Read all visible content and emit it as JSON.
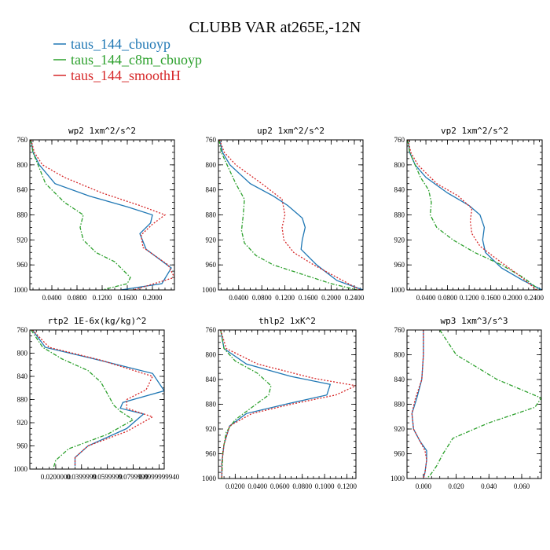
{
  "title": "CLUBB VAR at265E,-12N",
  "colors": {
    "taus_144_cbuoyp": "#1f77b4",
    "taus_144_c8m_cbuoyp": "#2ca02c",
    "taus_144_smoothH": "#d62728"
  },
  "legend": [
    {
      "label": "taus_144_cbuoyp",
      "color": "#1f77b4",
      "dash": "solid"
    },
    {
      "label": "taus_144_c8m_cbuoyp",
      "color": "#2ca02c",
      "dash": "dashdot"
    },
    {
      "label": "taus_144_smoothH",
      "color": "#d62728",
      "dash": "dotted"
    }
  ],
  "chart_data": [
    {
      "type": "line",
      "title": "wp2  1xm^2/s^2",
      "ylim": [
        760,
        1000
      ],
      "yticks": [
        760,
        800,
        840,
        880,
        920,
        960,
        1000
      ],
      "ytick_labels": [
        "760",
        "800",
        "840",
        "880",
        "920",
        "960",
        "1000"
      ],
      "xlim": [
        0.005,
        0.235
      ],
      "xticks": [
        0.04,
        0.08,
        0.12,
        0.16,
        0.2
      ],
      "xtick_labels": [
        "0.0400",
        "0.0800",
        "0.1200",
        "0.1600",
        "0.2000"
      ],
      "series": [
        {
          "name": "taus_144_cbuoyp",
          "x": [
            0.007,
            0.01,
            0.02,
            0.045,
            0.1,
            0.16,
            0.2,
            0.197,
            0.18,
            0.19,
            0.23,
            0.215,
            0.15
          ],
          "y": [
            760,
            780,
            800,
            830,
            850,
            867,
            880,
            893,
            910,
            935,
            965,
            990,
            1000
          ]
        },
        {
          "name": "taus_144_c8m_cbuoyp",
          "x": [
            0.006,
            0.01,
            0.018,
            0.03,
            0.06,
            0.09,
            0.085,
            0.09,
            0.11,
            0.14,
            0.165,
            0.16,
            0.12
          ],
          "y": [
            760,
            780,
            800,
            830,
            860,
            880,
            900,
            920,
            940,
            955,
            980,
            990,
            1000
          ]
        },
        {
          "name": "taus_144_smoothH",
          "x": [
            0.007,
            0.012,
            0.025,
            0.06,
            0.12,
            0.18,
            0.22,
            0.2,
            0.182,
            0.185,
            0.225,
            0.235,
            0.17
          ],
          "y": [
            760,
            780,
            800,
            820,
            845,
            865,
            880,
            895,
            912,
            932,
            960,
            980,
            1000
          ]
        }
      ]
    },
    {
      "type": "line",
      "title": "up2  1xm^2/s^2",
      "ylim": [
        760,
        1000
      ],
      "yticks": [
        760,
        800,
        840,
        880,
        920,
        960,
        1000
      ],
      "ytick_labels": [
        "760",
        "800",
        "840",
        "880",
        "920",
        "960",
        "1000"
      ],
      "xlim": [
        0.005,
        0.255
      ],
      "xticks": [
        0.04,
        0.08,
        0.12,
        0.16,
        0.2,
        0.24
      ],
      "xtick_labels": [
        "0.0400",
        "0.0800",
        "0.1200",
        "0.1600",
        "0.2000",
        "0.2400"
      ],
      "series": [
        {
          "name": "taus_144_cbuoyp",
          "x": [
            0.007,
            0.012,
            0.025,
            0.06,
            0.1,
            0.125,
            0.15,
            0.155,
            0.15,
            0.148,
            0.175,
            0.21,
            0.255
          ],
          "y": [
            760,
            780,
            800,
            830,
            850,
            865,
            885,
            900,
            920,
            935,
            960,
            985,
            1000
          ]
        },
        {
          "name": "taus_144_c8m_cbuoyp",
          "x": [
            0.006,
            0.01,
            0.02,
            0.035,
            0.05,
            0.048,
            0.045,
            0.05,
            0.07,
            0.1,
            0.15,
            0.2,
            0.245
          ],
          "y": [
            760,
            780,
            800,
            830,
            855,
            880,
            905,
            925,
            945,
            960,
            975,
            990,
            1000
          ]
        },
        {
          "name": "taus_144_smoothH",
          "x": [
            0.007,
            0.015,
            0.035,
            0.08,
            0.115,
            0.12,
            0.115,
            0.118,
            0.135,
            0.17,
            0.21,
            0.25
          ],
          "y": [
            760,
            780,
            800,
            830,
            855,
            880,
            900,
            920,
            940,
            960,
            980,
            1000
          ]
        }
      ]
    },
    {
      "type": "line",
      "title": "vp2  1xm^2/s^2",
      "ylim": [
        760,
        1000
      ],
      "yticks": [
        760,
        800,
        840,
        880,
        920,
        960,
        1000
      ],
      "ytick_labels": [
        "760",
        "800",
        "840",
        "880",
        "920",
        "960",
        "1000"
      ],
      "xlim": [
        0.005,
        0.255
      ],
      "xticks": [
        0.04,
        0.08,
        0.12,
        0.16,
        0.2,
        0.24
      ],
      "xtick_labels": [
        "0.0400",
        "0.0800",
        "0.1200",
        "0.1600",
        "0.2000",
        "0.2400"
      ],
      "series": [
        {
          "name": "taus_144_cbuoyp",
          "x": [
            0.007,
            0.01,
            0.02,
            0.04,
            0.08,
            0.12,
            0.14,
            0.148,
            0.145,
            0.15,
            0.18,
            0.22,
            0.255
          ],
          "y": [
            760,
            780,
            800,
            820,
            845,
            865,
            880,
            900,
            920,
            940,
            965,
            985,
            1000
          ]
        },
        {
          "name": "taus_144_c8m_cbuoyp",
          "x": [
            0.006,
            0.01,
            0.02,
            0.03,
            0.045,
            0.05,
            0.048,
            0.06,
            0.09,
            0.13,
            0.18,
            0.22,
            0.25
          ],
          "y": [
            760,
            780,
            800,
            820,
            840,
            860,
            880,
            900,
            920,
            940,
            960,
            980,
            1000
          ]
        },
        {
          "name": "taus_144_smoothH",
          "x": [
            0.007,
            0.012,
            0.025,
            0.06,
            0.1,
            0.125,
            0.122,
            0.125,
            0.14,
            0.17,
            0.21,
            0.245
          ],
          "y": [
            760,
            780,
            800,
            830,
            850,
            870,
            890,
            910,
            930,
            950,
            975,
            1000
          ]
        }
      ]
    },
    {
      "type": "line",
      "title": "rtp2  1E-6x(kg/kg)^2",
      "ylim": [
        760,
        1000
      ],
      "yticks": [
        760,
        800,
        840,
        880,
        920,
        960,
        1000
      ],
      "ytick_labels": [
        "760",
        "800",
        "840",
        "880",
        "920",
        "960",
        "1000"
      ],
      "xlim": [
        0,
        0.104
      ],
      "xticks": [
        0.02,
        0.04,
        0.06,
        0.08,
        0.1
      ],
      "xtick_labels": [
        "0.0200000",
        "0.0399999",
        "0.0599999",
        "0.0799999",
        "0.0999999940"
      ],
      "series": [
        {
          "name": "taus_144_cbuoyp",
          "x": [
            0.002,
            0.012,
            0.05,
            0.095,
            0.104,
            0.072,
            0.07,
            0.088,
            0.075,
            0.045,
            0.035,
            0.035
          ],
          "y": [
            760,
            790,
            810,
            835,
            865,
            885,
            895,
            905,
            930,
            960,
            980,
            995
          ]
        },
        {
          "name": "taus_144_c8m_cbuoyp",
          "x": [
            0.001,
            0.01,
            0.025,
            0.045,
            0.055,
            0.06,
            0.065,
            0.07,
            0.08,
            0.06,
            0.03,
            0.02,
            0.018
          ],
          "y": [
            760,
            790,
            810,
            830,
            850,
            870,
            890,
            900,
            915,
            940,
            965,
            985,
            1000
          ]
        },
        {
          "name": "taus_144_smoothH",
          "x": [
            0.002,
            0.015,
            0.055,
            0.095,
            0.09,
            0.075,
            0.075,
            0.095,
            0.075,
            0.045,
            0.035,
            0.035
          ],
          "y": [
            760,
            790,
            812,
            840,
            863,
            880,
            895,
            910,
            935,
            960,
            980,
            995
          ]
        }
      ]
    },
    {
      "type": "line",
      "title": "thlp2  1xK^2",
      "ylim": [
        760,
        1000
      ],
      "yticks": [
        760,
        800,
        840,
        880,
        920,
        960,
        1000
      ],
      "ytick_labels": [
        "760",
        "800",
        "840",
        "880",
        "920",
        "960",
        "1000"
      ],
      "xlim": [
        0.005,
        0.128
      ],
      "xticks": [
        0.02,
        0.04,
        0.06,
        0.08,
        0.1,
        0.12
      ],
      "xtick_labels": [
        "0.0200",
        "0.0400",
        "0.0600",
        "0.0800",
        "0.1000",
        "0.1200"
      ],
      "series": [
        {
          "name": "taus_144_cbuoyp",
          "x": [
            0.007,
            0.01,
            0.03,
            0.07,
            0.105,
            0.102,
            0.065,
            0.03,
            0.015,
            0.01,
            0.008,
            0.008
          ],
          "y": [
            760,
            790,
            815,
            835,
            848,
            865,
            880,
            895,
            915,
            945,
            975,
            1000
          ]
        },
        {
          "name": "taus_144_c8m_cbuoyp",
          "x": [
            0.007,
            0.01,
            0.02,
            0.04,
            0.052,
            0.05,
            0.035,
            0.02,
            0.012,
            0.009,
            0.008
          ],
          "y": [
            760,
            790,
            810,
            830,
            850,
            865,
            885,
            905,
            925,
            955,
            1000
          ]
        },
        {
          "name": "taus_144_smoothH",
          "x": [
            0.007,
            0.012,
            0.04,
            0.09,
            0.128,
            0.11,
            0.07,
            0.035,
            0.015,
            0.01,
            0.008,
            0.008
          ],
          "y": [
            760,
            790,
            815,
            838,
            850,
            865,
            880,
            895,
            915,
            945,
            975,
            1000
          ]
        }
      ]
    },
    {
      "type": "line",
      "title": "wp3  1xm^3/s^3",
      "ylim": [
        760,
        1000
      ],
      "yticks": [
        760,
        800,
        840,
        880,
        920,
        960,
        1000
      ],
      "ytick_labels": [
        "760",
        "800",
        "840",
        "880",
        "920",
        "960",
        "1000"
      ],
      "xlim": [
        -0.01,
        0.072
      ],
      "xticks": [
        0,
        0.02,
        0.04,
        0.06
      ],
      "xtick_labels": [
        "0.000",
        "0.020",
        "0.040",
        "0.060"
      ],
      "series": [
        {
          "name": "taus_144_cbuoyp",
          "x": [
            0,
            0,
            -0.001,
            -0.004,
            -0.007,
            -0.006,
            -0.002,
            0.002,
            0.002,
            0.001,
            0
          ],
          "y": [
            760,
            800,
            840,
            870,
            895,
            920,
            940,
            955,
            970,
            990,
            1000
          ]
        },
        {
          "name": "taus_144_c8m_cbuoyp",
          "x": [
            0.01,
            0.02,
            0.045,
            0.072,
            0.068,
            0.04,
            0.018,
            0.012,
            0.008,
            0.004,
            0.002
          ],
          "y": [
            760,
            800,
            840,
            870,
            885,
            910,
            935,
            960,
            980,
            995,
            1000
          ]
        },
        {
          "name": "taus_144_smoothH",
          "x": [
            0,
            0,
            -0.001,
            -0.005,
            -0.007,
            -0.006,
            -0.002,
            0.001,
            0.002,
            0.001,
            0
          ],
          "y": [
            760,
            800,
            840,
            872,
            895,
            920,
            940,
            955,
            970,
            990,
            1000
          ]
        }
      ]
    }
  ]
}
